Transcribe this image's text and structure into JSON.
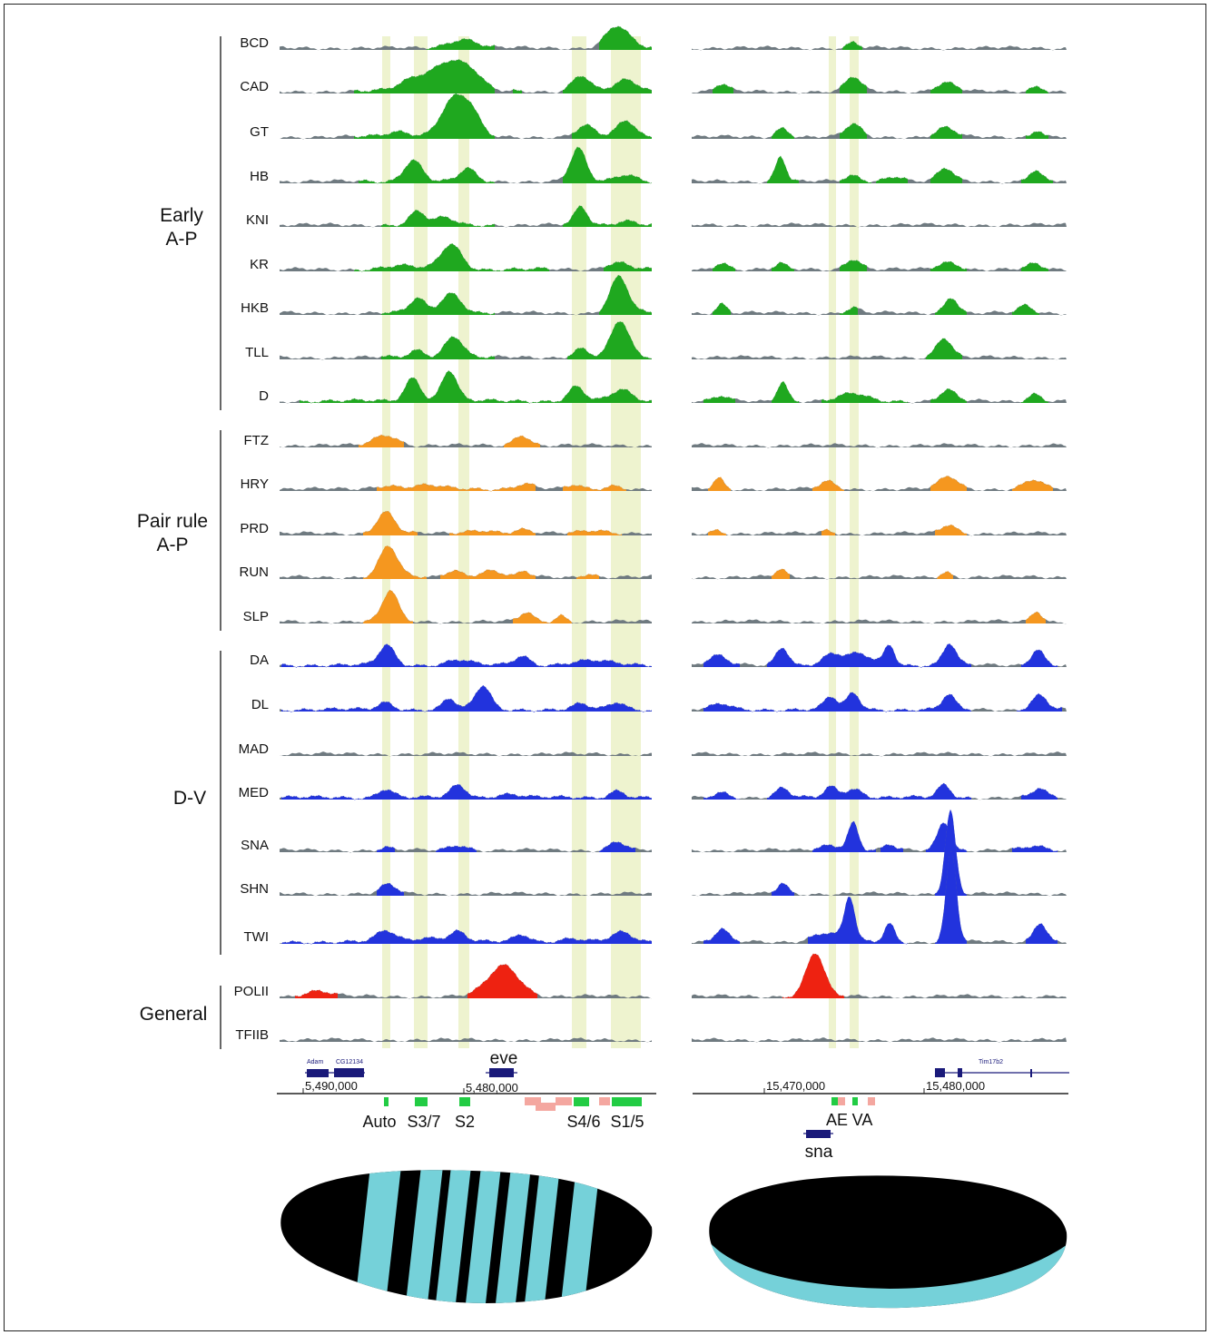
{
  "groups": [
    {
      "label_lines": [
        "Early",
        "A-P"
      ]
    },
    {
      "label_lines": [
        "Pair rule",
        "A-P"
      ]
    },
    {
      "label_lines": [
        "D-V"
      ]
    },
    {
      "label_lines": [
        "General"
      ]
    }
  ],
  "colors": {
    "early_ap": "#1fa81f",
    "pair_rule": "#f5971f",
    "dv": "#2233dd",
    "general": "#ee2211",
    "baseline": "#6f7a80",
    "highlight": "#eef3cf",
    "gene_model": "#1a1a7a",
    "region_green": "#22cc44",
    "region_pink": "#f4a7a0",
    "embryo_body": "#000000",
    "embryo_stain": "#7fe3ec"
  },
  "tracks": [
    {
      "label": "BCD",
      "group": 0
    },
    {
      "label": "CAD",
      "group": 0
    },
    {
      "label": "GT",
      "group": 0
    },
    {
      "label": "HB",
      "group": 0
    },
    {
      "label": "KNI",
      "group": 0
    },
    {
      "label": "KR",
      "group": 0
    },
    {
      "label": "HKB",
      "group": 0
    },
    {
      "label": "TLL",
      "group": 0
    },
    {
      "label": "D",
      "group": 0
    },
    {
      "label": "FTZ",
      "group": 1
    },
    {
      "label": "HRY",
      "group": 1
    },
    {
      "label": "PRD",
      "group": 1
    },
    {
      "label": "RUN",
      "group": 1
    },
    {
      "label": "SLP",
      "group": 1
    },
    {
      "label": "DA",
      "group": 2
    },
    {
      "label": "DL",
      "group": 2
    },
    {
      "label": "MAD",
      "group": 2
    },
    {
      "label": "MED",
      "group": 2
    },
    {
      "label": "SNA",
      "group": 2
    },
    {
      "label": "SHN",
      "group": 2
    },
    {
      "label": "TWI",
      "group": 2
    },
    {
      "label": "POLII",
      "group": 3
    },
    {
      "label": "TFIIB",
      "group": 3
    }
  ],
  "left_locus": {
    "gene_labels": [
      "Adam",
      "CG12134",
      "eve"
    ],
    "coordinates": [
      "5,490,000",
      "5,480,000"
    ],
    "regions": [
      "Auto",
      "S3/7",
      "S2",
      "S4/6",
      "S1/5"
    ]
  },
  "right_locus": {
    "gene_labels": [
      "Tim17b2",
      "sna"
    ],
    "coordinates": [
      "15,470,000",
      "15,480,000"
    ],
    "regions": [
      "AE",
      "VA"
    ]
  },
  "embryos": [
    {
      "pattern": "seven transverse stripes"
    },
    {
      "pattern": "ventral band"
    }
  ]
}
